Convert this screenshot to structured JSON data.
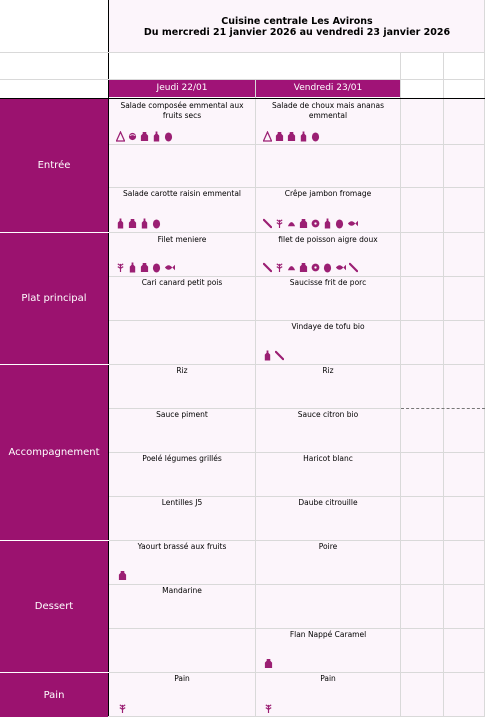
{
  "header": {
    "title_line1": "Cuisine centrale Les Avirons",
    "title_line2": "Du mercredi 21 janvier 2026 au vendredi 23 janvier 2026"
  },
  "days": [
    "Jeudi 22/01",
    "Vendredi 23/01"
  ],
  "categories": {
    "entree": "Entrée",
    "plat": "Plat principal",
    "accompagnement": "Accompagnement",
    "dessert": "Dessert",
    "pain": "Pain"
  },
  "jeudi": {
    "entree1": "Salade composée emmental aux fruits secs",
    "entree2": "Salade carotte raisin emmental",
    "plat1": "Filet meniere",
    "plat2": "Cari canard petit pois",
    "acc1": "Riz",
    "acc2": "Sauce piment",
    "acc3": "Poelé légumes grillés",
    "acc4": "Lentilles J5",
    "dessert1": "Yaourt brassé aux fruits",
    "dessert2": "Mandarine",
    "pain": "Pain"
  },
  "vendredi": {
    "entree1": "Salade de choux mais ananas emmental",
    "entree2": "Crêpe jambon fromage",
    "plat1": "filet de poisson aigre doux",
    "plat2": "Saucisse frit de porc",
    "plat3": "Vindaye de tofu bio",
    "acc1": "Riz",
    "acc2": "Sauce citron bio",
    "acc3": "Haricot blanc",
    "acc4": "Daube citrouille",
    "dessert1": "Poire",
    "dessert3": "Flan Nappé Caramel",
    "pain": "Pain"
  },
  "icon_color": "#9b1f73"
}
